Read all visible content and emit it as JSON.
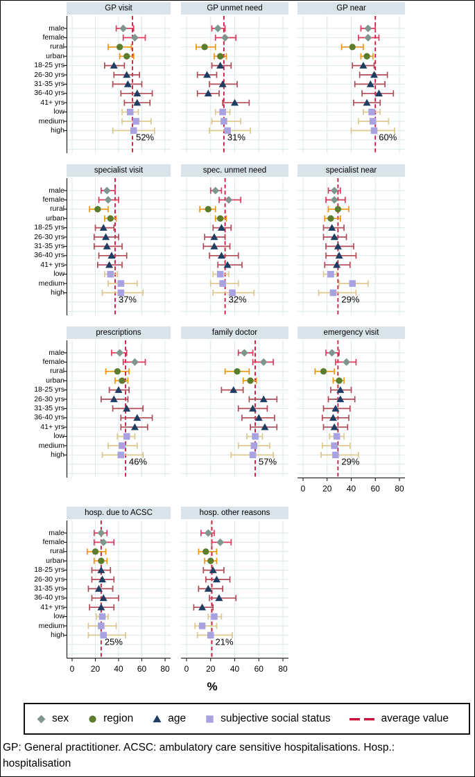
{
  "chart_data": {
    "type": "forest-dot-multipanel",
    "xlabel": "%",
    "x_ticks": [
      0,
      20,
      40,
      60,
      80
    ],
    "xlim": [
      0,
      80
    ],
    "grid": true,
    "categories": [
      "male",
      "female",
      "rural",
      "urban",
      "18-25 yrs",
      "26-30 yrs",
      "31-35 yrs",
      "36-40 yrs",
      "41+ yrs",
      "low",
      "medium",
      "high"
    ],
    "category_groups": [
      "sex",
      "sex",
      "region",
      "region",
      "age",
      "age",
      "age",
      "age",
      "age",
      "sss",
      "sss",
      "sss"
    ],
    "estimate_format": [
      "value_pct",
      "ci_low_pct",
      "ci_high_pct"
    ],
    "legend": [
      {
        "key": "sex",
        "label": "sex"
      },
      {
        "key": "region",
        "label": "region"
      },
      {
        "key": "age",
        "label": "age"
      },
      {
        "key": "sss",
        "label": "subjective social status"
      },
      {
        "key": "average",
        "label": "average value"
      }
    ],
    "colors": {
      "sex_marker": "#7e968c",
      "sex_ci": "#e0395c",
      "region_marker": "#5a7c2d",
      "region_ci": "#f0930f",
      "age_marker": "#1e3d63",
      "age_ci": "#b04a55",
      "sss_marker": "#a9a2e0",
      "sss_ci": "#dbc88e",
      "average_line": "#cd1039",
      "panel_title_bg": "#d9e3ea",
      "gridline": "#dce8ec"
    },
    "panels": [
      {
        "slug": "gp-visit",
        "title": "GP visit",
        "row": 0,
        "col": 0,
        "average": 52,
        "average_label": "52%",
        "show_x_axis": false,
        "estimates": [
          [
            44,
            38,
            53
          ],
          [
            54,
            44,
            63
          ],
          [
            41,
            31,
            51
          ],
          [
            47,
            41,
            53
          ],
          [
            36,
            28,
            45
          ],
          [
            47,
            36,
            58
          ],
          [
            48,
            35,
            60
          ],
          [
            56,
            42,
            69
          ],
          [
            56,
            45,
            67
          ],
          [
            50,
            43,
            57
          ],
          [
            55,
            43,
            68
          ],
          [
            53,
            35,
            71
          ]
        ]
      },
      {
        "slug": "gp-unmet-need",
        "title": "GP unmet need",
        "row": 0,
        "col": 1,
        "average": 31,
        "average_label": "31%",
        "show_x_axis": false,
        "estimates": [
          [
            26,
            21,
            32
          ],
          [
            32,
            24,
            41
          ],
          [
            15,
            8,
            24
          ],
          [
            28,
            23,
            33
          ],
          [
            28,
            21,
            37
          ],
          [
            17,
            9,
            25
          ],
          [
            30,
            19,
            42
          ],
          [
            18,
            9,
            27
          ],
          [
            40,
            30,
            52
          ],
          [
            30,
            24,
            36
          ],
          [
            31,
            21,
            45
          ],
          [
            34,
            19,
            53
          ]
        ]
      },
      {
        "slug": "gp-near",
        "title": "GP near",
        "row": 0,
        "col": 2,
        "average": 60,
        "average_label": "60%",
        "show_x_axis": false,
        "estimates": [
          [
            54,
            48,
            60
          ],
          [
            54,
            46,
            63
          ],
          [
            41,
            32,
            50
          ],
          [
            53,
            48,
            58
          ],
          [
            50,
            41,
            59
          ],
          [
            59,
            47,
            70
          ],
          [
            56,
            43,
            68
          ],
          [
            63,
            49,
            75
          ],
          [
            53,
            42,
            64
          ],
          [
            57,
            50,
            64
          ],
          [
            58,
            46,
            71
          ],
          [
            59,
            40,
            76
          ]
        ]
      },
      {
        "slug": "specialist-visit",
        "title": "specialist visit",
        "row": 1,
        "col": 0,
        "average": 37,
        "average_label": "37%",
        "show_x_axis": false,
        "estimates": [
          [
            30,
            25,
            37
          ],
          [
            31,
            23,
            40
          ],
          [
            22,
            15,
            31
          ],
          [
            33,
            28,
            38
          ],
          [
            27,
            20,
            36
          ],
          [
            29,
            19,
            40
          ],
          [
            30,
            19,
            43
          ],
          [
            34,
            23,
            47
          ],
          [
            32,
            22,
            43
          ],
          [
            33,
            28,
            39
          ],
          [
            42,
            31,
            56
          ],
          [
            42,
            26,
            61
          ]
        ]
      },
      {
        "slug": "spec-unmet-need",
        "title": "spec. unmet need",
        "row": 1,
        "col": 1,
        "average": 32,
        "average_label": "32%",
        "show_x_axis": false,
        "estimates": [
          [
            24,
            20,
            29
          ],
          [
            35,
            27,
            45
          ],
          [
            18,
            11,
            24
          ],
          [
            28,
            24,
            33
          ],
          [
            29,
            22,
            37
          ],
          [
            23,
            15,
            32
          ],
          [
            23,
            14,
            36
          ],
          [
            29,
            19,
            43
          ],
          [
            34,
            26,
            46
          ],
          [
            28,
            22,
            35
          ],
          [
            30,
            20,
            43
          ],
          [
            38,
            22,
            56
          ]
        ]
      },
      {
        "slug": "specialist-near",
        "title": "specialist near",
        "row": 1,
        "col": 2,
        "average": 29,
        "average_label": "29%",
        "show_x_axis": false,
        "estimates": [
          [
            26,
            21,
            31
          ],
          [
            26,
            19,
            35
          ],
          [
            29,
            21,
            38
          ],
          [
            23,
            18,
            31
          ],
          [
            24,
            17,
            34
          ],
          [
            26,
            17,
            36
          ],
          [
            29,
            19,
            42
          ],
          [
            30,
            19,
            44
          ],
          [
            28,
            18,
            39
          ],
          [
            23,
            17,
            28
          ],
          [
            41,
            30,
            54
          ],
          [
            25,
            13,
            44
          ]
        ]
      },
      {
        "slug": "prescriptions",
        "title": "prescriptions",
        "row": 2,
        "col": 0,
        "average": 46,
        "average_label": "46%",
        "show_x_axis": false,
        "estimates": [
          [
            41,
            34,
            47
          ],
          [
            54,
            44,
            63
          ],
          [
            39,
            29,
            49
          ],
          [
            43,
            37,
            48
          ],
          [
            40,
            32,
            49
          ],
          [
            36,
            25,
            48
          ],
          [
            47,
            35,
            61
          ],
          [
            56,
            42,
            69
          ],
          [
            54,
            42,
            65
          ],
          [
            47,
            39,
            54
          ],
          [
            43,
            31,
            56
          ],
          [
            42,
            26,
            61
          ]
        ]
      },
      {
        "slug": "family-doctor",
        "title": "family doctor",
        "row": 2,
        "col": 1,
        "average": 57,
        "average_label": "57%",
        "show_x_axis": false,
        "estimates": [
          [
            48,
            43,
            55
          ],
          [
            64,
            55,
            72
          ],
          [
            42,
            32,
            52
          ],
          [
            53,
            47,
            58
          ],
          [
            39,
            29,
            47
          ],
          [
            64,
            52,
            75
          ],
          [
            55,
            43,
            67
          ],
          [
            60,
            46,
            73
          ],
          [
            65,
            53,
            75
          ],
          [
            57,
            50,
            63
          ],
          [
            56,
            43,
            69
          ],
          [
            55,
            37,
            72
          ]
        ]
      },
      {
        "slug": "emergency-visit",
        "title": "emergency visit",
        "row": 2,
        "col": 2,
        "average": 29,
        "average_label": "29%",
        "show_x_axis": true,
        "estimates": [
          [
            24,
            19,
            30
          ],
          [
            36,
            27,
            44
          ],
          [
            17,
            10,
            26
          ],
          [
            30,
            25,
            34
          ],
          [
            31,
            23,
            40
          ],
          [
            31,
            21,
            43
          ],
          [
            27,
            17,
            39
          ],
          [
            25,
            16,
            38
          ],
          [
            26,
            17,
            37
          ],
          [
            28,
            22,
            34
          ],
          [
            26,
            16,
            39
          ],
          [
            27,
            15,
            46
          ]
        ]
      },
      {
        "slug": "hosp-due-to-acsc",
        "title": "hosp. due to ACSC",
        "row": 3,
        "col": 0,
        "average": 25,
        "average_label": "25%",
        "show_x_axis": true,
        "estimates": [
          [
            25,
            19,
            30
          ],
          [
            27,
            19,
            36
          ],
          [
            20,
            13,
            29
          ],
          [
            25,
            19,
            30
          ],
          [
            25,
            17,
            33
          ],
          [
            26,
            17,
            36
          ],
          [
            23,
            14,
            35
          ],
          [
            27,
            17,
            40
          ],
          [
            25,
            15,
            36
          ],
          [
            26,
            21,
            31
          ],
          [
            25,
            14,
            38
          ],
          [
            27,
            14,
            46
          ]
        ]
      },
      {
        "slug": "hosp-other-reasons",
        "title": "hosp. other reasons",
        "row": 3,
        "col": 1,
        "average": 21,
        "average_label": "21%",
        "show_x_axis": true,
        "estimates": [
          [
            18,
            12,
            23
          ],
          [
            28,
            21,
            37
          ],
          [
            16,
            10,
            25
          ],
          [
            20,
            15,
            25
          ],
          [
            22,
            14,
            31
          ],
          [
            25,
            16,
            36
          ],
          [
            18,
            10,
            30
          ],
          [
            27,
            19,
            41
          ],
          [
            13,
            6,
            22
          ],
          [
            23,
            18,
            29
          ],
          [
            13,
            7,
            25
          ],
          [
            20,
            9,
            38
          ]
        ]
      }
    ],
    "caption": "GP: General practitioner. ACSC: ambulatory care sensitive hospitalisations. Hosp.:\nhospitalisation"
  }
}
